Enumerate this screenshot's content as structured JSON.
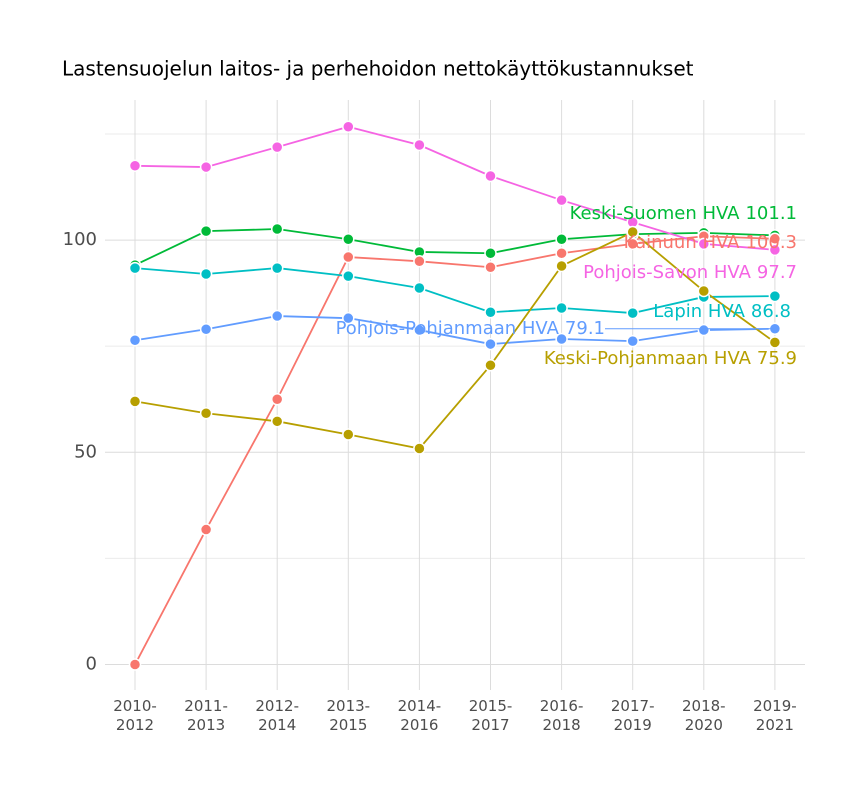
{
  "chart_data": {
    "type": "line",
    "title": "Lastensuojelun laitos- ja perhehoidon nettokäyttökustannukset",
    "categories": [
      "2010-\n2012",
      "2011-\n2013",
      "2012-\n2014",
      "2013-\n2015",
      "2014-\n2016",
      "2015-\n2017",
      "2016-\n2018",
      "2017-\n2019",
      "2018-\n2020",
      "2019-\n2021"
    ],
    "ylim": [
      -6,
      133
    ],
    "yticks": [
      0,
      50,
      100
    ],
    "minor_yticks": [
      25,
      75,
      125
    ],
    "grid": true,
    "series": [
      {
        "name": "Keski-Suomen HVA",
        "color": "#00ba38",
        "values": [
          94.1,
          102.1,
          102.6,
          100.2,
          97.2,
          96.9,
          100.2,
          101.4,
          101.7,
          101.1
        ]
      },
      {
        "name": "Kainuun HVA",
        "color": "#f8766d",
        "values": [
          0,
          31.8,
          62.5,
          96.0,
          95.0,
          93.6,
          96.9,
          99.1,
          100.9,
          100.3
        ]
      },
      {
        "name": "Pohjois-Savon HVA",
        "color": "#f564e3",
        "values": [
          117.5,
          117.2,
          121.9,
          126.7,
          122.4,
          115.1,
          109.4,
          104.2,
          99.1,
          97.7
        ]
      },
      {
        "name": "Lapin HVA",
        "color": "#00bfc4",
        "values": [
          93.4,
          92.0,
          93.4,
          91.5,
          88.7,
          83.0,
          84.0,
          82.8,
          86.6,
          86.8
        ]
      },
      {
        "name": "Pohjois-Pohjanmaan HVA",
        "color": "#619cff",
        "values": [
          76.4,
          79.0,
          82.1,
          81.6,
          78.8,
          75.5,
          76.7,
          76.2,
          78.8,
          79.1
        ]
      },
      {
        "name": "Keski-Pohjanmaan HVA",
        "color": "#b79f00",
        "values": [
          62.0,
          59.2,
          57.3,
          54.2,
          50.9,
          70.5,
          93.9,
          101.9,
          88.0,
          75.9
        ]
      }
    ]
  }
}
